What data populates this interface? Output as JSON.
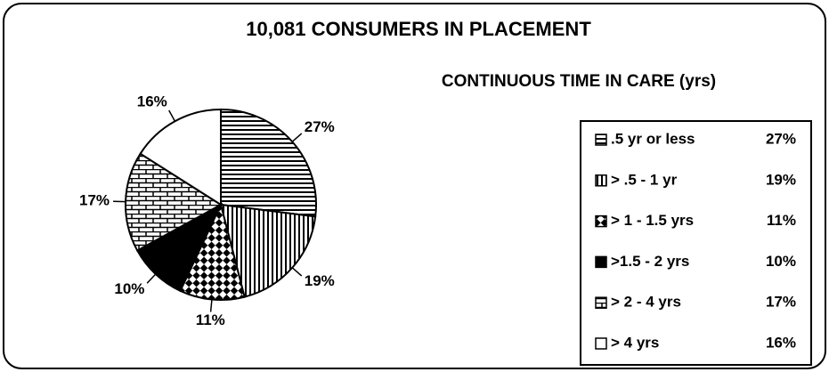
{
  "chart_data": {
    "type": "pie",
    "title": "10,081 CONSUMERS IN PLACEMENT",
    "subtitle": "CONTINUOUS TIME IN CARE (yrs)",
    "categories": [
      ".5 yr or less",
      "> .5 - 1 yr",
      "> 1 - 1.5 yrs",
      ">1.5 - 2 yrs",
      "> 2 - 4 yrs",
      "> 4 yrs"
    ],
    "values": [
      27,
      19,
      11,
      10,
      17,
      16
    ],
    "value_labels": [
      "27%",
      "19%",
      "11%",
      "10%",
      "17%",
      "16%"
    ],
    "patterns": [
      "horizontal",
      "vertical",
      "checker",
      "solid",
      "brick",
      "none"
    ]
  }
}
